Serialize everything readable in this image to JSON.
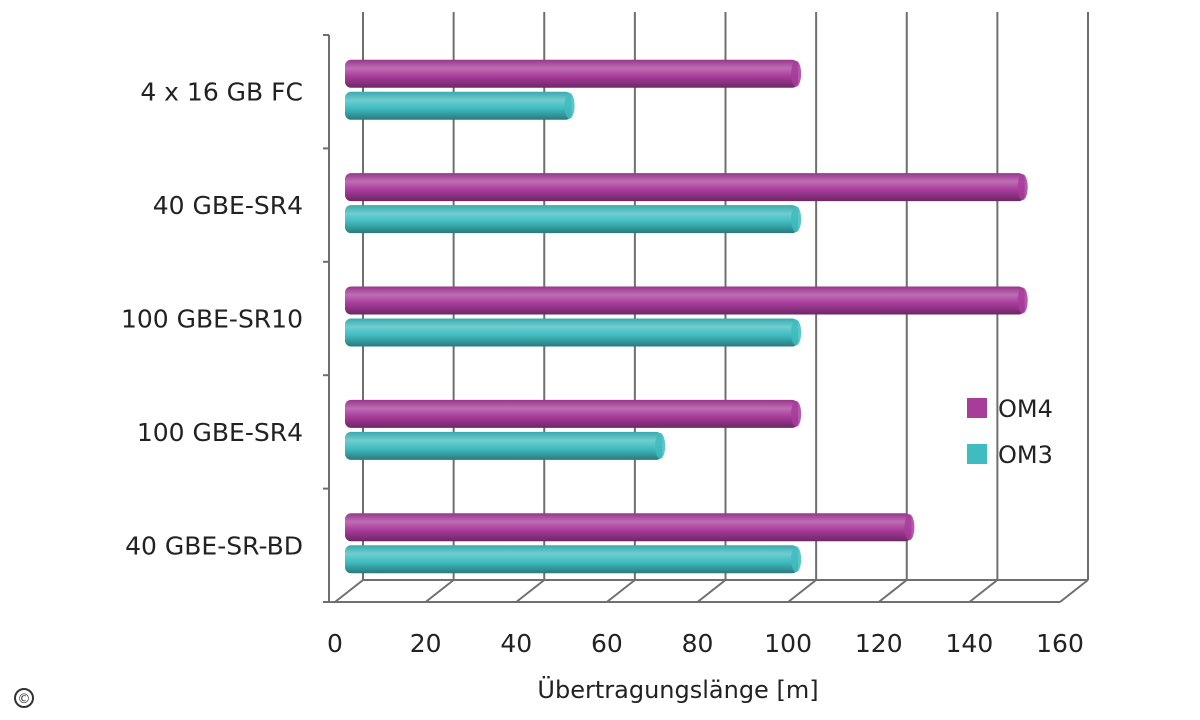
{
  "chart_data": {
    "type": "bar",
    "orientation": "horizontal",
    "categories": [
      "4 x 16 GB FC",
      "40 GBE-SR4",
      "100 GBE-SR10",
      "100 GBE-SR4",
      "40 GBE-SR-BD"
    ],
    "series": [
      {
        "name": "OM4",
        "values": [
          100,
          150,
          150,
          100,
          125
        ],
        "color": "#a83c9b"
      },
      {
        "name": "OM3",
        "values": [
          50,
          100,
          100,
          70,
          100
        ],
        "color": "#3fbcc0"
      }
    ],
    "xlabel": "Übertragungslänge [m]",
    "ylabel": "",
    "xlim": [
      0,
      160
    ],
    "xticks": [
      "0",
      "20",
      "40",
      "60",
      "80",
      "100",
      "120",
      "140",
      "160"
    ],
    "grid": true,
    "legend_position": "right"
  },
  "copyright_symbol": "©"
}
